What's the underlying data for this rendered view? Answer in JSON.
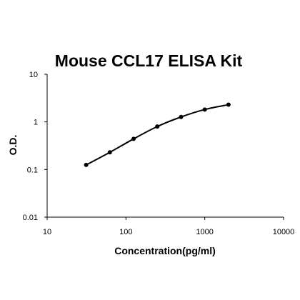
{
  "chart_data": {
    "type": "scatter",
    "title": "Mouse CCL17 ELISA Kit",
    "xlabel": "Concentration(pg/ml)",
    "ylabel": "O.D.",
    "x_scale": "log",
    "y_scale": "log",
    "xlim": [
      10,
      10000
    ],
    "ylim": [
      0.01,
      10
    ],
    "x_ticks": [
      "10",
      "100",
      "1000",
      "10000"
    ],
    "y_ticks": [
      "0.01",
      "0.1",
      "1",
      "10"
    ],
    "grid": false,
    "legend": "none",
    "series": [
      {
        "x": [
          31.25,
          62.5,
          125,
          250,
          500,
          1000,
          2000
        ],
        "y": [
          0.125,
          0.23,
          0.44,
          0.8,
          1.27,
          1.82,
          2.3
        ],
        "style": "markers-with-smooth-line"
      }
    ],
    "colors": {
      "line": "#000000",
      "markers": "#000000",
      "background": "#ffffff"
    }
  }
}
